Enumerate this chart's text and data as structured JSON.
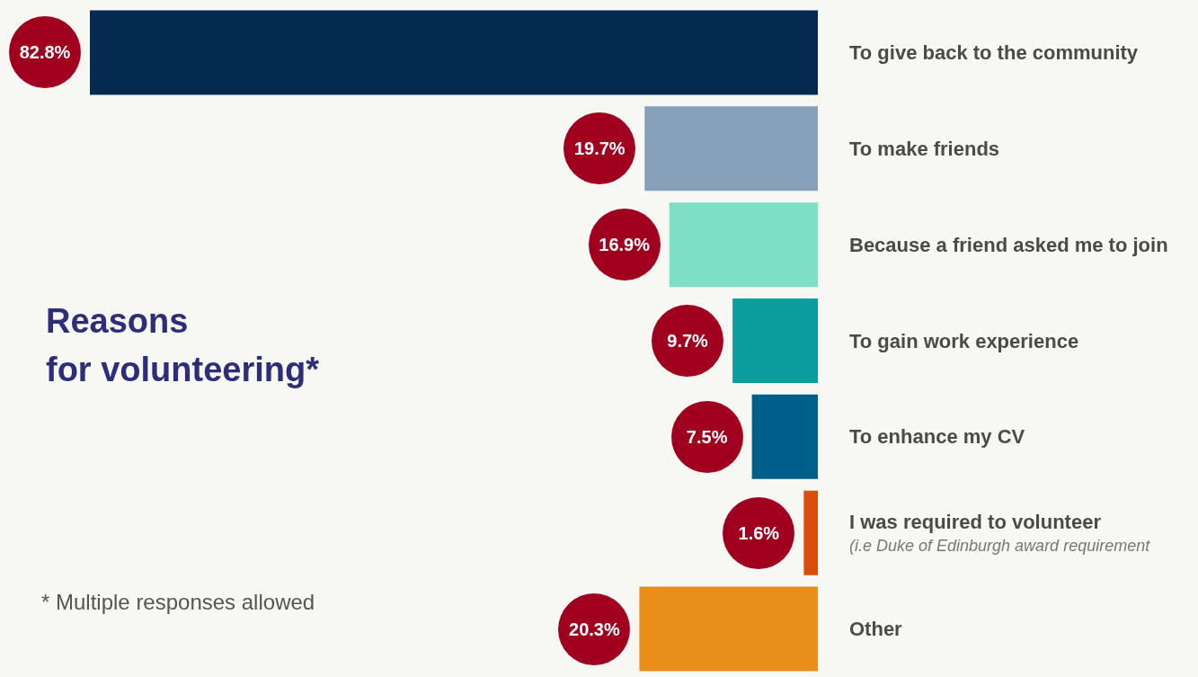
{
  "chart_data": {
    "type": "bar",
    "orientation": "horizontal",
    "title": "Reasons\nfor volunteering*",
    "categories": [
      "To give back to the community",
      "To make friends",
      "Because a friend asked me to join",
      "To gain work experience",
      "To enhance my CV",
      "I was required to volunteer\n(i.e Duke of Edinburgh award requirement",
      "Other"
    ],
    "values": [
      82.8,
      19.7,
      16.9,
      9.7,
      7.5,
      1.6,
      20.3
    ],
    "colors": [
      "#052a4f",
      "#85a0b8",
      "#7de0c5",
      "#0c9e9e",
      "#005f8a",
      "#d94f0a",
      "#e98e1a"
    ],
    "value_labels": [
      "82.8%",
      "19.7%",
      "16.9%",
      "9.7%",
      "7.5%",
      "1.6%",
      "20.3%"
    ],
    "annotations": [
      "* Multiple responses allowed"
    ]
  }
}
